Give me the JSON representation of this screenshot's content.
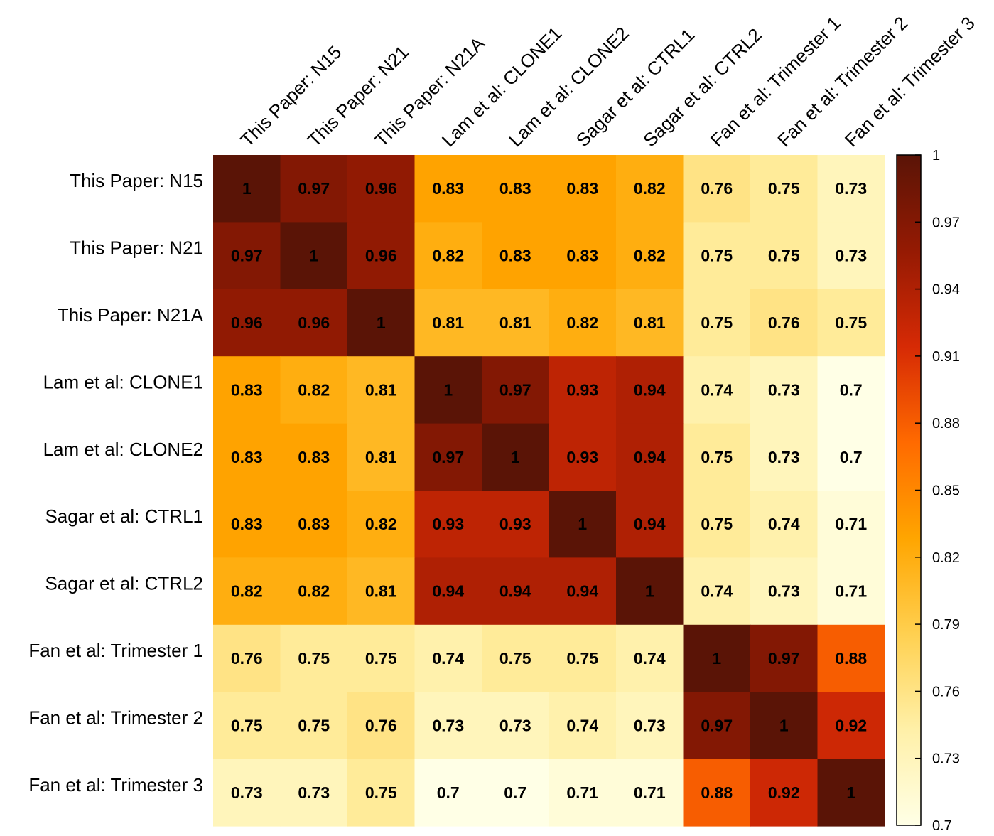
{
  "chart_data": {
    "type": "heatmap",
    "row_labels": [
      "This Paper: N15",
      "This Paper: N21",
      "This Paper: N21A",
      "Lam et al: CLONE1",
      "Lam et al: CLONE2",
      "Sagar et al: CTRL1",
      "Sagar et al: CTRL2",
      "Fan et al: Trimester 1",
      "Fan et al: Trimester 2",
      "Fan et al: Trimester 3"
    ],
    "col_labels": [
      "This Paper: N15",
      "This Paper: N21",
      "This Paper: N21A",
      "Lam et al: CLONE1",
      "Lam et al: CLONE2",
      "Sagar et al: CTRL1",
      "Sagar et al: CTRL2",
      "Fan et al: Trimester 1",
      "Fan et al: Trimester 2",
      "Fan et al: Trimester 3"
    ],
    "values": [
      [
        1,
        0.97,
        0.96,
        0.83,
        0.83,
        0.83,
        0.82,
        0.76,
        0.75,
        0.73
      ],
      [
        0.97,
        1,
        0.96,
        0.82,
        0.83,
        0.83,
        0.82,
        0.75,
        0.75,
        0.73
      ],
      [
        0.96,
        0.96,
        1,
        0.81,
        0.81,
        0.82,
        0.81,
        0.75,
        0.76,
        0.75
      ],
      [
        0.83,
        0.82,
        0.81,
        1,
        0.97,
        0.93,
        0.94,
        0.74,
        0.73,
        0.7
      ],
      [
        0.83,
        0.83,
        0.81,
        0.97,
        1,
        0.93,
        0.94,
        0.75,
        0.73,
        0.7
      ],
      [
        0.83,
        0.83,
        0.82,
        0.93,
        0.93,
        1,
        0.94,
        0.75,
        0.74,
        0.71
      ],
      [
        0.82,
        0.82,
        0.81,
        0.94,
        0.94,
        0.94,
        1,
        0.74,
        0.73,
        0.71
      ],
      [
        0.76,
        0.75,
        0.75,
        0.74,
        0.75,
        0.75,
        0.74,
        1,
        0.97,
        0.88
      ],
      [
        0.75,
        0.75,
        0.76,
        0.73,
        0.73,
        0.74,
        0.73,
        0.97,
        1,
        0.92
      ],
      [
        0.73,
        0.73,
        0.75,
        0.7,
        0.7,
        0.71,
        0.71,
        0.88,
        0.92,
        1
      ]
    ],
    "colorbar": {
      "min": 0.7,
      "max": 1,
      "ticks": [
        1,
        0.97,
        0.94,
        0.91,
        0.88,
        0.85,
        0.82,
        0.79,
        0.76,
        0.73,
        0.7
      ]
    },
    "colormap": [
      "#ffffe6",
      "#fff0a8",
      "#ffd050",
      "#ffa500",
      "#ff6a00",
      "#d62a05",
      "#951a03",
      "#5a1406"
    ]
  }
}
